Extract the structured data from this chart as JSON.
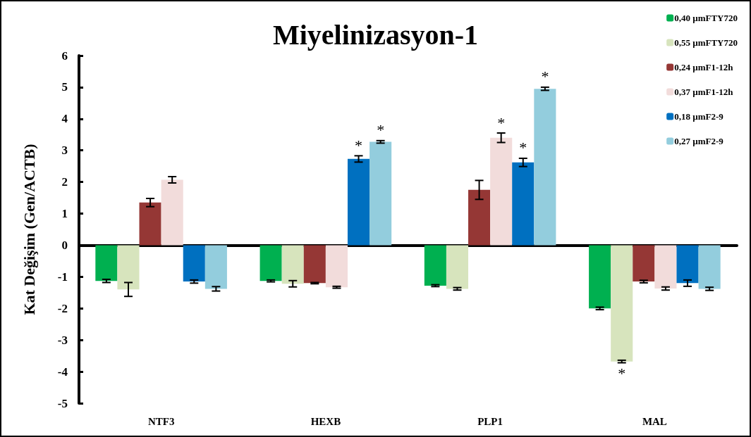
{
  "chart_data": {
    "type": "bar",
    "title": "Miyelinizasyon-1",
    "ylabel": "Kat Değişim (Gen/ACTB)",
    "categories": [
      "NTF3",
      "HEXB",
      "PLP1",
      "MAL"
    ],
    "ylim": [
      -5,
      6
    ],
    "yticks": [
      -5,
      -4,
      -3,
      -2,
      -1,
      0,
      1,
      2,
      3,
      4,
      5,
      6
    ],
    "legend": "top right",
    "series": [
      {
        "name": "0,40 µmFTY720",
        "color": "#00b050",
        "values": [
          -1.13,
          -1.13,
          -1.28,
          -2.0
        ],
        "errors": [
          0.05,
          0.03,
          0.03,
          0.04
        ],
        "value_labels": [
          null,
          null,
          null,
          null
        ]
      },
      {
        "name": "0,55 µmFTY720",
        "color": "#d7e4bd",
        "values": [
          -1.4,
          -1.22,
          -1.38,
          -3.68
        ],
        "errors": [
          0.22,
          0.1,
          0.04,
          0.04
        ],
        "value_labels": [
          null,
          null,
          null,
          "*"
        ]
      },
      {
        "name": "0,24 µmF1-12h",
        "color": "#953735",
        "values": [
          1.35,
          -1.2,
          1.75,
          -1.15
        ],
        "errors": [
          0.13,
          0.02,
          0.3,
          0.04
        ],
        "value_labels": [
          null,
          null,
          null,
          null
        ]
      },
      {
        "name": "0,37 µmF1-12h",
        "color": "#f2dcdb",
        "values": [
          2.07,
          -1.33,
          3.4,
          -1.37
        ],
        "errors": [
          0.1,
          0.03,
          0.15,
          0.05
        ],
        "value_labels": [
          null,
          null,
          "*",
          null
        ]
      },
      {
        "name": "0,18 µmF2-9",
        "color": "#0070c0",
        "values": [
          -1.15,
          2.73,
          2.62,
          -1.2
        ],
        "errors": [
          0.05,
          0.1,
          0.13,
          0.1
        ],
        "value_labels": [
          null,
          "*",
          "*",
          null
        ]
      },
      {
        "name": "0,27 µmF2-9",
        "color": "#93cddd",
        "values": [
          -1.38,
          3.27,
          4.95,
          -1.38
        ],
        "errors": [
          0.07,
          0.04,
          0.05,
          0.05
        ],
        "value_labels": [
          null,
          "*",
          "*",
          null
        ]
      }
    ]
  }
}
